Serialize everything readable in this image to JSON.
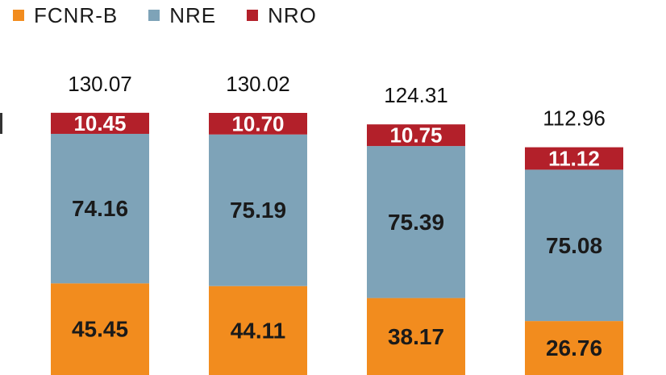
{
  "legend": [
    {
      "label": "FCNR-B",
      "color": "#f28c1e"
    },
    {
      "label": "NRE",
      "color": "#7ea3b8"
    },
    {
      "label": "NRO",
      "color": "#b3202a"
    }
  ],
  "chart_data": {
    "type": "bar",
    "stacked": true,
    "categories": [
      "",
      "",
      "",
      ""
    ],
    "series": [
      {
        "name": "FCNR-B",
        "color": "#f28c1e",
        "values": [
          45.45,
          44.11,
          38.17,
          26.76
        ]
      },
      {
        "name": "NRE",
        "color": "#7ea3b8",
        "values": [
          74.16,
          75.19,
          75.39,
          75.08
        ]
      },
      {
        "name": "NRO",
        "color": "#b3202a",
        "values": [
          10.45,
          10.7,
          10.75,
          11.12
        ]
      }
    ],
    "totals": [
      130.07,
      130.02,
      124.31,
      112.96
    ],
    "labels": {
      "FCNR-B": [
        "45.45",
        "44.11",
        "38.17",
        "26.76"
      ],
      "NRE": [
        "74.16",
        "75.19",
        "75.39",
        "75.08"
      ],
      "NRO": [
        "10.45",
        "10.70",
        "10.75",
        "11.12"
      ],
      "totals": [
        "130.07",
        "130.02",
        "124.31",
        "112.96"
      ]
    },
    "ylim": [
      0,
      135
    ],
    "grid": false,
    "legend_position": "top-left",
    "title": "",
    "xlabel": "",
    "ylabel": ""
  }
}
